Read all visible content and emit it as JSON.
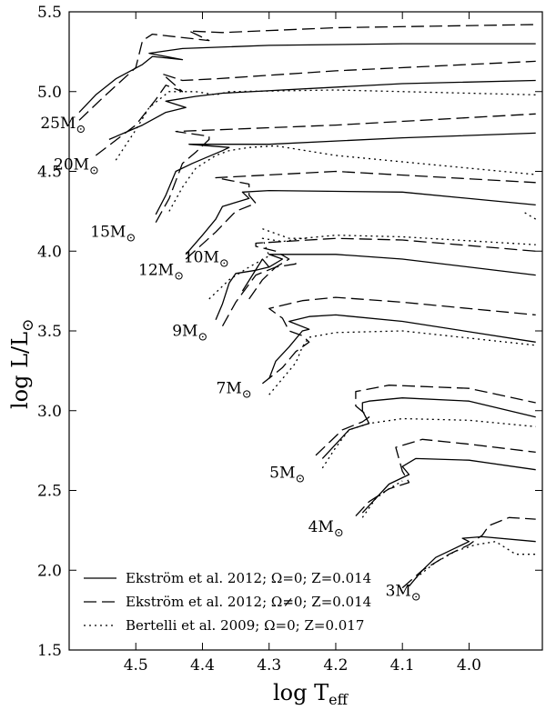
{
  "chart_data": {
    "type": "line",
    "xlabel_main": "log T",
    "xlabel_sub": "eff",
    "ylabel_main": "log L/L",
    "ylabel_sun": "⊙",
    "xlim": [
      4.6,
      3.89
    ],
    "ylim": [
      1.5,
      5.5
    ],
    "x_reversed": true,
    "x_ticks": [
      4.5,
      4.4,
      4.3,
      4.2,
      4.1,
      4.0
    ],
    "x_tick_labels": [
      "4.5",
      "4.4",
      "4.3",
      "4.2",
      "4.1",
      "4.0"
    ],
    "y_ticks": [
      1.5,
      2.0,
      2.5,
      3.0,
      3.5,
      4.0,
      4.5,
      5.0,
      5.5
    ],
    "y_tick_labels": [
      "1.5",
      "2.0",
      "2.5",
      "3.0",
      "3.5",
      "4.0",
      "4.5",
      "5.0",
      "5.5"
    ],
    "grid": false,
    "legend_position": "bottom-left",
    "series": [
      {
        "name": "Ekström et al. 2012; Ω=0; Z=0.014",
        "style": "solid",
        "dash": ""
      },
      {
        "name": "Ekström et al. 2012; Ω≠0; Z=0.014",
        "style": "dashed",
        "dash": "14,6"
      },
      {
        "name": "Bertelli et al. 2009; Ω=0; Z=0.017",
        "style": "dotted",
        "dash": "2,4"
      }
    ],
    "mass_labels": [
      {
        "text": "25M",
        "sun": "⊙",
        "x": 4.575,
        "y": 4.77
      },
      {
        "text": "20M",
        "sun": "⊙",
        "x": 4.555,
        "y": 4.51
      },
      {
        "text": "15M",
        "sun": "⊙",
        "x": 4.5,
        "y": 4.09
      },
      {
        "text": "12M",
        "sun": "⊙",
        "x": 4.428,
        "y": 3.85
      },
      {
        "text": "10M",
        "sun": "⊙",
        "x": 4.36,
        "y": 3.93
      },
      {
        "text": "9M",
        "sun": "⊙",
        "x": 4.392,
        "y": 3.47
      },
      {
        "text": "7M",
        "sun": "⊙",
        "x": 4.326,
        "y": 3.11
      },
      {
        "text": "5M",
        "sun": "⊙",
        "x": 4.246,
        "y": 2.58
      },
      {
        "text": "4M",
        "sun": "⊙",
        "x": 4.188,
        "y": 2.24
      },
      {
        "text": "3M",
        "sun": "⊙",
        "x": 4.072,
        "y": 1.84
      }
    ],
    "tracks": [
      {
        "mass": "25",
        "series": 0,
        "points": [
          [
            4.585,
            4.87
          ],
          [
            4.56,
            4.98
          ],
          [
            4.53,
            5.08
          ],
          [
            4.49,
            5.17
          ],
          [
            4.475,
            5.22
          ],
          [
            4.43,
            5.2
          ],
          [
            4.48,
            5.24
          ],
          [
            4.43,
            5.27
          ],
          [
            4.3,
            5.29
          ],
          [
            4.1,
            5.3
          ],
          [
            3.9,
            5.3
          ]
        ]
      },
      {
        "mass": "25",
        "series": 1,
        "points": [
          [
            4.585,
            4.82
          ],
          [
            4.55,
            4.96
          ],
          [
            4.5,
            5.15
          ],
          [
            4.49,
            5.32
          ],
          [
            4.475,
            5.36
          ],
          [
            4.39,
            5.32
          ],
          [
            4.42,
            5.38
          ],
          [
            4.37,
            5.37
          ],
          [
            4.2,
            5.4
          ],
          [
            3.9,
            5.42
          ]
        ]
      },
      {
        "mass": "20",
        "series": 0,
        "points": [
          [
            4.54,
            4.7
          ],
          [
            4.49,
            4.79
          ],
          [
            4.455,
            4.87
          ],
          [
            4.425,
            4.9
          ],
          [
            4.455,
            4.94
          ],
          [
            4.41,
            4.97
          ],
          [
            4.37,
            4.99
          ],
          [
            4.1,
            5.05
          ],
          [
            3.9,
            5.07
          ]
        ]
      },
      {
        "mass": "20",
        "series": 1,
        "points": [
          [
            4.56,
            4.6
          ],
          [
            4.5,
            4.79
          ],
          [
            4.47,
            4.95
          ],
          [
            4.455,
            5.04
          ],
          [
            4.43,
            5.0
          ],
          [
            4.46,
            5.11
          ],
          [
            4.43,
            5.07
          ],
          [
            4.38,
            5.08
          ],
          [
            4.2,
            5.13
          ],
          [
            3.9,
            5.19
          ]
        ]
      },
      {
        "mass": "20",
        "series": 2,
        "points": [
          [
            4.53,
            4.57
          ],
          [
            4.5,
            4.76
          ],
          [
            4.48,
            4.9
          ],
          [
            4.45,
            5.0
          ],
          [
            4.41,
            5.0
          ],
          [
            4.38,
            4.98
          ],
          [
            4.36,
            5.0
          ],
          [
            4.2,
            5.01
          ],
          [
            3.9,
            4.98
          ]
        ]
      },
      {
        "mass": "15",
        "series": 0,
        "points": [
          [
            4.47,
            4.23
          ],
          [
            4.455,
            4.35
          ],
          [
            4.44,
            4.5
          ],
          [
            4.415,
            4.55
          ],
          [
            4.37,
            4.63
          ],
          [
            4.36,
            4.65
          ],
          [
            4.42,
            4.67
          ],
          [
            4.3,
            4.67
          ],
          [
            4.1,
            4.71
          ],
          [
            3.9,
            4.74
          ]
        ]
      },
      {
        "mass": "15",
        "series": 1,
        "points": [
          [
            4.47,
            4.18
          ],
          [
            4.45,
            4.33
          ],
          [
            4.43,
            4.55
          ],
          [
            4.41,
            4.62
          ],
          [
            4.39,
            4.7
          ],
          [
            4.39,
            4.72
          ],
          [
            4.44,
            4.75
          ],
          [
            4.2,
            4.79
          ],
          [
            3.9,
            4.86
          ]
        ]
      },
      {
        "mass": "15",
        "series": 2,
        "points": [
          [
            4.45,
            4.25
          ],
          [
            4.43,
            4.4
          ],
          [
            4.41,
            4.52
          ],
          [
            4.38,
            4.6
          ],
          [
            4.36,
            4.63
          ],
          [
            4.33,
            4.65
          ],
          [
            4.29,
            4.66
          ],
          [
            4.2,
            4.6
          ],
          [
            4.0,
            4.52
          ],
          [
            3.9,
            4.48
          ]
        ]
      },
      {
        "mass": "12",
        "series": 0,
        "points": [
          [
            4.425,
            3.98
          ],
          [
            4.4,
            4.1
          ],
          [
            4.38,
            4.2
          ],
          [
            4.37,
            4.28
          ],
          [
            4.33,
            4.33
          ],
          [
            4.34,
            4.37
          ],
          [
            4.3,
            4.38
          ],
          [
            4.1,
            4.37
          ],
          [
            3.9,
            4.29
          ]
        ]
      },
      {
        "mass": "12",
        "series": 1,
        "points": [
          [
            4.425,
            3.95
          ],
          [
            4.38,
            4.12
          ],
          [
            4.35,
            4.25
          ],
          [
            4.32,
            4.3
          ],
          [
            4.33,
            4.35
          ],
          [
            4.33,
            4.42
          ],
          [
            4.38,
            4.46
          ],
          [
            4.2,
            4.5
          ],
          [
            3.9,
            4.43
          ]
        ]
      },
      {
        "mass": "12",
        "series": 2,
        "points": [
          [
            3.9,
            4.2
          ],
          [
            3.92,
            4.25
          ]
        ]
      },
      {
        "mass": "10",
        "series": 0,
        "points": [
          [
            4.34,
            3.75
          ],
          [
            4.325,
            3.85
          ],
          [
            4.31,
            3.95
          ],
          [
            4.3,
            3.9
          ],
          [
            4.28,
            3.95
          ],
          [
            4.3,
            3.98
          ],
          [
            4.2,
            3.98
          ],
          [
            4.1,
            3.95
          ],
          [
            3.9,
            3.85
          ]
        ]
      },
      {
        "mass": "10",
        "series": 1,
        "points": [
          [
            4.33,
            3.7
          ],
          [
            4.31,
            3.82
          ],
          [
            4.29,
            3.9
          ],
          [
            4.27,
            3.95
          ],
          [
            4.29,
            4.0
          ],
          [
            4.32,
            4.03
          ],
          [
            4.32,
            4.05
          ],
          [
            4.2,
            4.08
          ],
          [
            4.1,
            4.07
          ],
          [
            3.9,
            4.0
          ]
        ]
      },
      {
        "mass": "10",
        "series": 2,
        "points": [
          [
            4.39,
            3.7
          ],
          [
            4.36,
            3.82
          ],
          [
            4.33,
            3.9
          ],
          [
            4.3,
            3.97
          ],
          [
            4.31,
            4.08
          ],
          [
            4.28,
            4.06
          ],
          [
            4.25,
            4.08
          ],
          [
            4.2,
            4.1
          ],
          [
            4.1,
            4.09
          ],
          [
            3.9,
            4.04
          ]
        ]
      },
      {
        "mass": "9",
        "series": 0,
        "points": [
          [
            4.38,
            3.57
          ],
          [
            4.37,
            3.67
          ],
          [
            4.36,
            3.8
          ],
          [
            4.35,
            3.86
          ],
          [
            4.32,
            3.88
          ],
          [
            4.3,
            3.9
          ]
        ]
      },
      {
        "mass": "9",
        "series": 1,
        "points": [
          [
            4.37,
            3.53
          ],
          [
            4.35,
            3.68
          ],
          [
            4.32,
            3.85
          ],
          [
            4.29,
            3.9
          ],
          [
            4.26,
            3.92
          ],
          [
            4.26,
            3.93
          ]
        ]
      },
      {
        "mass": "9",
        "series": 2,
        "points": [
          [
            4.31,
            4.14
          ],
          [
            4.27,
            4.08
          ],
          [
            4.24,
            4.08
          ]
        ]
      },
      {
        "mass": "7",
        "series": 0,
        "points": [
          [
            4.3,
            3.2
          ],
          [
            4.29,
            3.31
          ],
          [
            4.27,
            3.4
          ],
          [
            4.25,
            3.5
          ],
          [
            4.24,
            3.51
          ],
          [
            4.27,
            3.56
          ],
          [
            4.24,
            3.59
          ],
          [
            4.2,
            3.6
          ],
          [
            4.1,
            3.56
          ],
          [
            3.9,
            3.43
          ]
        ]
      },
      {
        "mass": "7",
        "series": 1,
        "points": [
          [
            4.31,
            3.17
          ],
          [
            4.28,
            3.27
          ],
          [
            4.26,
            3.37
          ],
          [
            4.24,
            3.43
          ],
          [
            4.25,
            3.47
          ],
          [
            4.27,
            3.5
          ],
          [
            4.28,
            3.58
          ],
          [
            4.3,
            3.64
          ],
          [
            4.25,
            3.69
          ],
          [
            4.2,
            3.71
          ],
          [
            4.1,
            3.68
          ],
          [
            3.9,
            3.6
          ]
        ]
      },
      {
        "mass": "7",
        "series": 2,
        "points": [
          [
            4.3,
            3.1
          ],
          [
            4.28,
            3.2
          ],
          [
            4.26,
            3.3
          ],
          [
            4.25,
            3.4
          ],
          [
            4.24,
            3.46
          ],
          [
            4.2,
            3.49
          ],
          [
            4.1,
            3.5
          ],
          [
            3.9,
            3.41
          ]
        ]
      },
      {
        "mass": "5",
        "series": 0,
        "points": [
          [
            4.22,
            2.7
          ],
          [
            4.2,
            2.79
          ],
          [
            4.18,
            2.88
          ],
          [
            4.15,
            2.92
          ],
          [
            4.16,
            3.0
          ],
          [
            4.16,
            3.05
          ],
          [
            4.15,
            3.06
          ],
          [
            4.1,
            3.08
          ],
          [
            4.0,
            3.06
          ],
          [
            3.9,
            2.96
          ]
        ]
      },
      {
        "mass": "5",
        "series": 1,
        "points": [
          [
            4.23,
            2.72
          ],
          [
            4.21,
            2.8
          ],
          [
            4.19,
            2.88
          ],
          [
            4.16,
            2.93
          ],
          [
            4.15,
            2.96
          ],
          [
            4.17,
            3.03
          ],
          [
            4.17,
            3.12
          ],
          [
            4.12,
            3.16
          ],
          [
            4.0,
            3.14
          ],
          [
            3.9,
            3.05
          ]
        ]
      },
      {
        "mass": "5",
        "series": 2,
        "points": [
          [
            4.22,
            2.64
          ],
          [
            4.2,
            2.77
          ],
          [
            4.18,
            2.88
          ],
          [
            4.15,
            2.92
          ],
          [
            4.1,
            2.95
          ],
          [
            4.0,
            2.94
          ],
          [
            3.9,
            2.9
          ]
        ]
      },
      {
        "mass": "4",
        "series": 0,
        "points": [
          [
            4.16,
            2.36
          ],
          [
            4.14,
            2.45
          ],
          [
            4.12,
            2.54
          ],
          [
            4.09,
            2.6
          ],
          [
            4.1,
            2.65
          ],
          [
            4.08,
            2.7
          ],
          [
            4.0,
            2.69
          ],
          [
            3.9,
            2.63
          ]
        ]
      },
      {
        "mass": "4",
        "series": 1,
        "points": [
          [
            4.17,
            2.34
          ],
          [
            4.15,
            2.43
          ],
          [
            4.12,
            2.51
          ],
          [
            4.09,
            2.55
          ],
          [
            4.1,
            2.62
          ],
          [
            4.11,
            2.77
          ],
          [
            4.07,
            2.82
          ],
          [
            4.0,
            2.79
          ],
          [
            3.9,
            2.74
          ]
        ]
      },
      {
        "mass": "4",
        "series": 2,
        "points": [
          [
            4.16,
            2.33
          ],
          [
            4.14,
            2.45
          ],
          [
            4.12,
            2.51
          ],
          [
            4.1,
            2.56
          ]
        ]
      },
      {
        "mass": "3",
        "series": 0,
        "points": [
          [
            4.09,
            1.9
          ],
          [
            4.07,
            2.0
          ],
          [
            4.05,
            2.08
          ],
          [
            4.02,
            2.14
          ],
          [
            4.0,
            2.18
          ],
          [
            4.01,
            2.2
          ],
          [
            3.98,
            2.21
          ],
          [
            3.9,
            2.18
          ]
        ]
      },
      {
        "mass": "3",
        "series": 1,
        "points": [
          [
            4.1,
            1.89
          ],
          [
            4.07,
            2.0
          ],
          [
            4.03,
            2.1
          ],
          [
            4.0,
            2.16
          ],
          [
            3.98,
            2.22
          ],
          [
            3.97,
            2.28
          ],
          [
            3.94,
            2.33
          ],
          [
            3.9,
            2.32
          ]
        ]
      },
      {
        "mass": "3",
        "series": 2,
        "points": [
          [
            4.08,
            1.95
          ],
          [
            4.05,
            2.05
          ],
          [
            4.02,
            2.12
          ],
          [
            3.99,
            2.16
          ],
          [
            3.96,
            2.18
          ],
          [
            3.93,
            2.1
          ],
          [
            3.9,
            2.1
          ]
        ]
      }
    ]
  }
}
